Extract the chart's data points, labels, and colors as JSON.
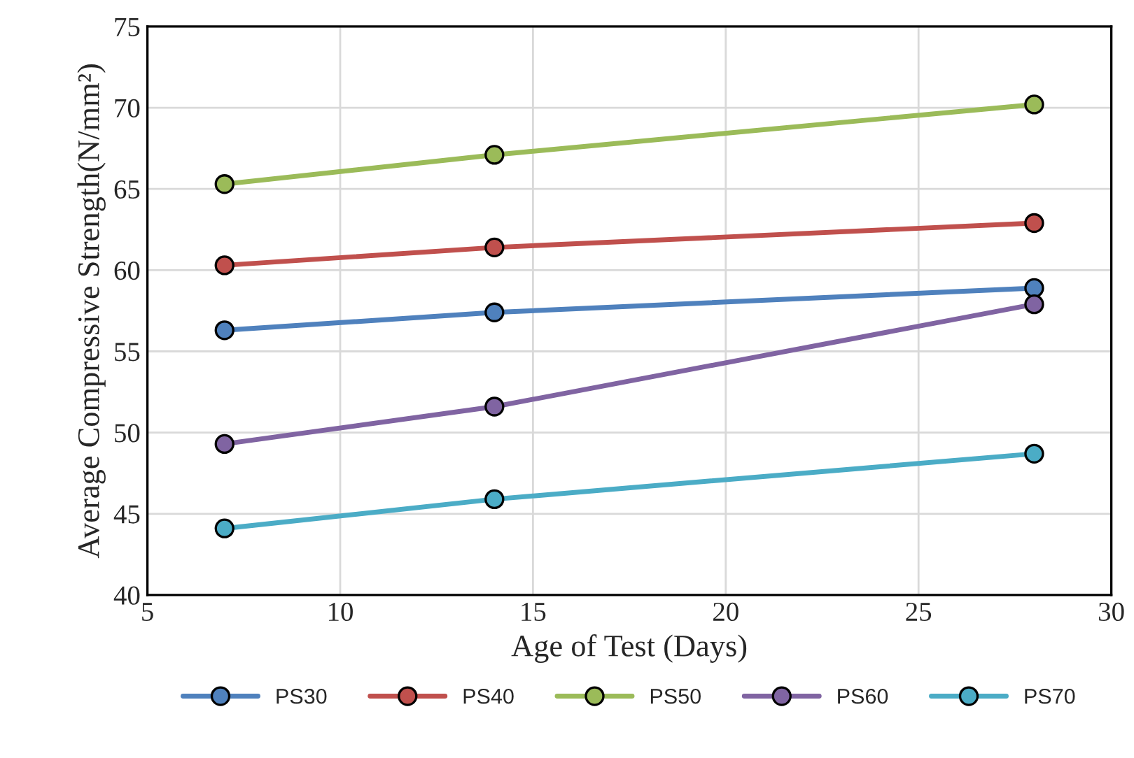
{
  "chart_data": {
    "type": "line",
    "xlabel": "Age of Test (Days)",
    "ylabel": "Average Compressive Strength(N/mm²)",
    "x": [
      7,
      14,
      28
    ],
    "series": [
      {
        "name": "PS30",
        "color": "#4f81bd",
        "values": [
          56.3,
          57.4,
          58.9
        ]
      },
      {
        "name": "PS40",
        "color": "#c0504d",
        "values": [
          60.3,
          61.4,
          62.9
        ]
      },
      {
        "name": "PS50",
        "color": "#9bbb59",
        "values": [
          65.3,
          67.1,
          70.2
        ]
      },
      {
        "name": "PS60",
        "color": "#8064a2",
        "values": [
          49.3,
          51.6,
          57.9
        ]
      },
      {
        "name": "PS70",
        "color": "#4bacc6",
        "values": [
          44.1,
          45.9,
          48.7
        ]
      }
    ],
    "xlim": [
      5,
      30
    ],
    "xticks": [
      5,
      10,
      15,
      20,
      25,
      30
    ],
    "ylim": [
      40,
      75
    ],
    "yticks": [
      40,
      45,
      50,
      55,
      60,
      65,
      70,
      75
    ],
    "grid": true,
    "legend": "bottom",
    "marker": "circle",
    "line_style": "solid"
  }
}
